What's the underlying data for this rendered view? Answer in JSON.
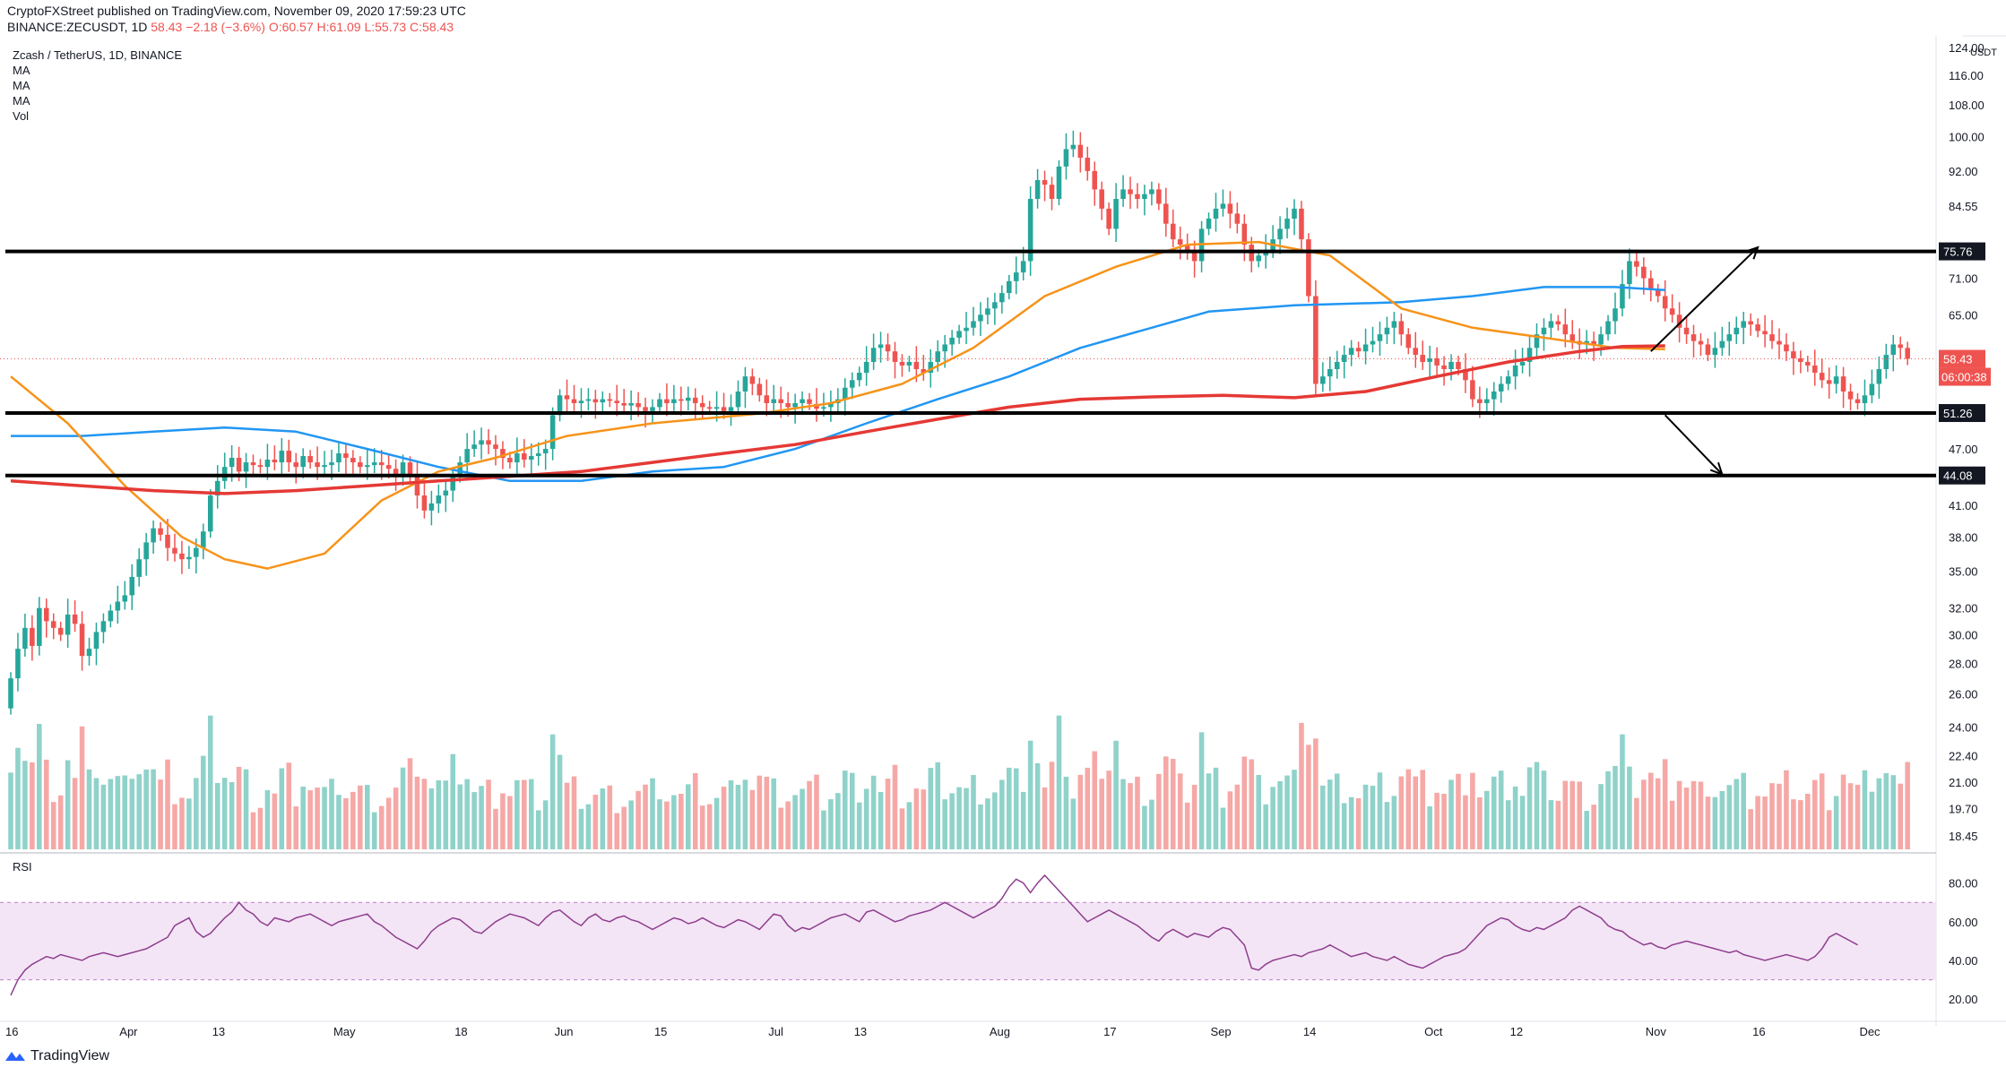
{
  "header": {
    "publisher_line": "CryptoFXStreet published on TradingView.com, November 09, 2020 17:59:23 UTC",
    "symbol": "BINANCE:ZECUSDT, 1D",
    "last": "58.43",
    "change": "−2.18 (−3.6%)",
    "ohlc": "O:60.57 H:61.09 L:55.73 C:58.43"
  },
  "legend": {
    "title": "Zcash / TetherUS, 1D, BINANCE",
    "items": [
      "MA",
      "MA",
      "MA",
      "Vol"
    ]
  },
  "watermark": "TradingView",
  "colors": {
    "up": "#26a69a",
    "down": "#ef5350",
    "vol_up": "#8fd2ca",
    "vol_down": "#f5a8a6",
    "ma_orange": "#f7931a",
    "ma_blue": "#2196f3",
    "ma_red": "#e53935",
    "rsi_line": "#8e3d8e",
    "rsi_band": "#f3e5f5"
  },
  "chart_data": [
    {
      "type": "candlestick",
      "title": "Zcash / TetherUS, 1D, BINANCE",
      "currency": "USDT",
      "scale": "log",
      "y_ticks": [
        18.45,
        19.7,
        21.0,
        22.4,
        24.0,
        26.0,
        28.0,
        30.0,
        32.0,
        35.0,
        38.0,
        41.0,
        44.08,
        47.0,
        51.26,
        58.43,
        65.0,
        71.0,
        75.76,
        84.55,
        92.0,
        100.0,
        108.0,
        116.0,
        124.0
      ],
      "y_tick_labels": [
        "18.45",
        "19.70",
        "21.00",
        "22.40",
        "24.00",
        "26.00",
        "28.00",
        "30.00",
        "32.00",
        "35.00",
        "38.00",
        "41.00",
        "",
        "47.00",
        "",
        "",
        "65.00",
        "71.00",
        "",
        "84.55",
        "92.00",
        "100.00",
        "108.00",
        "116.00",
        "124.00"
      ],
      "x_tick_labels": [
        [
          "16",
          0
        ],
        [
          "Apr",
          16
        ],
        [
          "13",
          29
        ],
        [
          "May",
          46
        ],
        [
          "18",
          63
        ],
        [
          "Jun",
          77
        ],
        [
          "15",
          91
        ],
        [
          "Jul",
          107
        ],
        [
          "13",
          119
        ],
        [
          "Aug",
          138
        ],
        [
          "17",
          154
        ],
        [
          "Sep",
          169
        ],
        [
          "14",
          182
        ],
        [
          "Oct",
          199
        ],
        [
          "12",
          211
        ],
        [
          "Nov",
          230
        ],
        [
          "16",
          245
        ],
        [
          "Dec",
          260
        ]
      ],
      "x_range_days": [
        0,
        270
      ],
      "level_labels": [
        {
          "value": 75.76,
          "text": "75.76",
          "bg": "#131722",
          "fg": "#ffffff"
        },
        {
          "value": 58.43,
          "text": "58.43",
          "bg": "#ef5350",
          "fg": "#ffffff"
        },
        {
          "value": 51.26,
          "text": "51.26",
          "bg": "#131722",
          "fg": "#ffffff"
        },
        {
          "value": 44.08,
          "text": "44.08",
          "bg": "#131722",
          "fg": "#ffffff"
        }
      ],
      "countdown": "06:00:38",
      "horizontal_lines": [
        75.76,
        51.26,
        44.08
      ],
      "arrows": [
        {
          "from": [
            230,
            59.5
          ],
          "to": [
            245,
            76.5
          ]
        },
        {
          "from": [
            232,
            51.0
          ],
          "to": [
            240,
            44.2
          ]
        }
      ],
      "closes": [
        27,
        29,
        30.5,
        29.2,
        32,
        31,
        30.5,
        30,
        31.5,
        30.8,
        28.5,
        29,
        30.2,
        31,
        31.8,
        32.5,
        33,
        34.5,
        36,
        37.5,
        38.8,
        38.2,
        37,
        36.5,
        36,
        36.2,
        37,
        38.5,
        42,
        43.5,
        45,
        46,
        44.5,
        45.5,
        45.2,
        45,
        45.8,
        45.5,
        46.8,
        45.5,
        45,
        46.2,
        45.5,
        45,
        45.2,
        45.5,
        46.5,
        46,
        45.5,
        45,
        45.2,
        45.5,
        45.2,
        44.8,
        44.2,
        45.5,
        44,
        42,
        40.5,
        41.2,
        42,
        42.5,
        44,
        45.5,
        47,
        47.5,
        48,
        47.5,
        47,
        46,
        45.5,
        46.5,
        45.8,
        46.2,
        46.5,
        47,
        51,
        53.5,
        53,
        52.5,
        52.8,
        53,
        52.6,
        53,
        52.8,
        52.5,
        52.2,
        52.5,
        52,
        51.5,
        52,
        53,
        52.5,
        53,
        52.8,
        53.2,
        52.5,
        52,
        51.8,
        52,
        51.5,
        52,
        54,
        56,
        55,
        53.5,
        52.5,
        53,
        52.5,
        52,
        52.5,
        53,
        52.4,
        51.8,
        52,
        52.5,
        53,
        54.5,
        55.5,
        56.5,
        58,
        60,
        60.5,
        59.5,
        58,
        57.5,
        58,
        57,
        56.5,
        58,
        59.5,
        60.5,
        61.5,
        62.5,
        63,
        64,
        65,
        66,
        67,
        68.5,
        70.5,
        72,
        74,
        86,
        90,
        89,
        86,
        93,
        97,
        98,
        95,
        92,
        88,
        84,
        80,
        86,
        88,
        87,
        86,
        87,
        88,
        85,
        81,
        78,
        77,
        76,
        74,
        80,
        82,
        84,
        85,
        83,
        81,
        77,
        74,
        75,
        76,
        78,
        80,
        82,
        84,
        78,
        68,
        55,
        56,
        57,
        58,
        59,
        60,
        59.5,
        60.5,
        61,
        62,
        63,
        64,
        62,
        60,
        59,
        58,
        58.5,
        57.5,
        57,
        58,
        57,
        55.5,
        53,
        52.5,
        53,
        54,
        55,
        56,
        57.5,
        58,
        60,
        62,
        63,
        64,
        63.5,
        62,
        61,
        60.5,
        61,
        60.5,
        62,
        64,
        66,
        70,
        74,
        73,
        71,
        69,
        68,
        66,
        65,
        63,
        62,
        61,
        60.5,
        59,
        60,
        61,
        62,
        63,
        64,
        63.5,
        62.5,
        62,
        61,
        60.5,
        59.5,
        58.5,
        58,
        57.5,
        56.5,
        55.5,
        55,
        56,
        54,
        53,
        52.5,
        53.5,
        55,
        57,
        59,
        60.5,
        60,
        58.43
      ],
      "ma_orange": [
        [
          0,
          56
        ],
        [
          8,
          50
        ],
        [
          16,
          43
        ],
        [
          24,
          38
        ],
        [
          30,
          36
        ],
        [
          36,
          35.2
        ],
        [
          44,
          36.5
        ],
        [
          52,
          41.5
        ],
        [
          60,
          44.5
        ],
        [
          68,
          46
        ],
        [
          78,
          48.5
        ],
        [
          90,
          50
        ],
        [
          105,
          51.2
        ],
        [
          115,
          52.5
        ],
        [
          125,
          55
        ],
        [
          135,
          60
        ],
        [
          145,
          68
        ],
        [
          155,
          73
        ],
        [
          165,
          77
        ],
        [
          175,
          77.5
        ],
        [
          185,
          75
        ],
        [
          195,
          66
        ],
        [
          205,
          63
        ],
        [
          215,
          61.5
        ],
        [
          225,
          60
        ],
        [
          232,
          59.8
        ]
      ],
      "ma_blue": [
        [
          0,
          48.5
        ],
        [
          10,
          48.5
        ],
        [
          20,
          49
        ],
        [
          30,
          49.5
        ],
        [
          40,
          49
        ],
        [
          50,
          47
        ],
        [
          60,
          45
        ],
        [
          70,
          43.5
        ],
        [
          80,
          43.5
        ],
        [
          90,
          44.5
        ],
        [
          100,
          45
        ],
        [
          110,
          47
        ],
        [
          120,
          50
        ],
        [
          130,
          53
        ],
        [
          140,
          56
        ],
        [
          150,
          60
        ],
        [
          160,
          63
        ],
        [
          168,
          65.5
        ],
        [
          180,
          66.5
        ],
        [
          195,
          67
        ],
        [
          205,
          68
        ],
        [
          215,
          69.5
        ],
        [
          225,
          69.5
        ],
        [
          232,
          69
        ]
      ],
      "ma_red": [
        [
          0,
          43.5
        ],
        [
          10,
          43
        ],
        [
          20,
          42.5
        ],
        [
          30,
          42.2
        ],
        [
          40,
          42.5
        ],
        [
          50,
          43
        ],
        [
          60,
          43.5
        ],
        [
          70,
          44
        ],
        [
          80,
          44.5
        ],
        [
          90,
          45.5
        ],
        [
          100,
          46.5
        ],
        [
          110,
          47.5
        ],
        [
          120,
          49
        ],
        [
          130,
          50.5
        ],
        [
          140,
          52
        ],
        [
          150,
          53
        ],
        [
          160,
          53.3
        ],
        [
          170,
          53.5
        ],
        [
          180,
          53.2
        ],
        [
          190,
          54
        ],
        [
          200,
          56
        ],
        [
          210,
          58
        ],
        [
          220,
          59.5
        ],
        [
          226,
          60.2
        ],
        [
          232,
          60.3
        ]
      ],
      "volume_axis_labels": []
    },
    {
      "type": "line",
      "title": "RSI",
      "y_ticks": [
        20,
        40,
        60,
        80
      ],
      "y_tick_labels": [
        "20.00",
        "40.00",
        "60.00",
        "80.00"
      ],
      "band": [
        30,
        70
      ],
      "values": [
        22,
        30,
        35,
        38,
        40,
        42,
        41,
        43,
        42,
        41,
        40,
        42,
        43,
        44,
        43,
        42,
        43,
        44,
        45,
        46,
        48,
        50,
        52,
        58,
        60,
        62,
        55,
        52,
        54,
        58,
        62,
        65,
        70,
        66,
        64,
        60,
        58,
        62,
        61,
        60,
        62,
        63,
        64,
        62,
        60,
        58,
        60,
        61,
        62,
        63,
        64,
        60,
        58,
        55,
        52,
        50,
        48,
        46,
        50,
        55,
        58,
        60,
        62,
        61,
        58,
        55,
        54,
        57,
        60,
        62,
        64,
        63,
        62,
        60,
        58,
        62,
        65,
        66,
        63,
        60,
        58,
        62,
        64,
        61,
        60,
        62,
        63,
        61,
        60,
        58,
        56,
        58,
        60,
        62,
        61,
        59,
        60,
        62,
        60,
        58,
        57,
        59,
        61,
        60,
        58,
        56,
        60,
        64,
        63,
        58,
        55,
        57,
        56,
        58,
        60,
        62,
        63,
        64,
        62,
        60,
        65,
        66,
        64,
        62,
        60,
        61,
        63,
        64,
        65,
        66,
        68,
        70,
        68,
        66,
        64,
        62,
        64,
        66,
        68,
        72,
        78,
        82,
        80,
        75,
        80,
        84,
        80,
        76,
        72,
        68,
        64,
        60,
        62,
        64,
        66,
        64,
        62,
        60,
        58,
        55,
        52,
        50,
        54,
        56,
        54,
        52,
        54,
        53,
        52,
        55,
        57,
        56,
        52,
        48,
        36,
        35,
        38,
        40,
        41,
        42,
        43,
        42,
        44,
        45,
        46,
        48,
        46,
        44,
        42,
        43,
        44,
        42,
        41,
        40,
        42,
        40,
        38,
        37,
        36,
        38,
        40,
        42,
        43,
        44,
        46,
        50,
        54,
        58,
        60,
        62,
        61,
        58,
        56,
        55,
        57,
        56,
        58,
        60,
        62,
        66,
        68,
        66,
        64,
        62,
        58,
        56,
        55,
        52,
        50,
        48,
        49,
        47,
        46,
        48,
        49,
        50,
        49,
        48,
        47,
        46,
        45,
        44,
        45,
        43,
        42,
        41,
        40,
        41,
        42,
        43,
        42,
        41,
        40,
        42,
        46,
        52,
        54,
        52,
        50,
        48
      ]
    }
  ]
}
